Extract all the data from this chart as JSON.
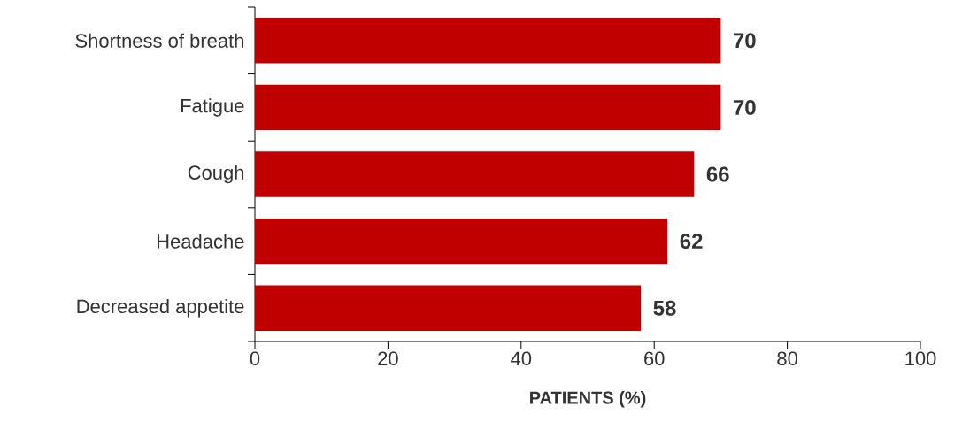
{
  "chart_data": {
    "type": "bar",
    "orientation": "horizontal",
    "categories": [
      "Shortness of breath",
      "Fatigue",
      "Cough",
      "Headache",
      "Decreased appetite"
    ],
    "values": [
      70,
      70,
      66,
      62,
      58
    ],
    "color": "#c00000",
    "data_labels": true,
    "xlim": [
      0,
      100
    ],
    "xticks": [
      0,
      20,
      40,
      60,
      80,
      100
    ],
    "xlabel": "PATIENTS (%)"
  }
}
